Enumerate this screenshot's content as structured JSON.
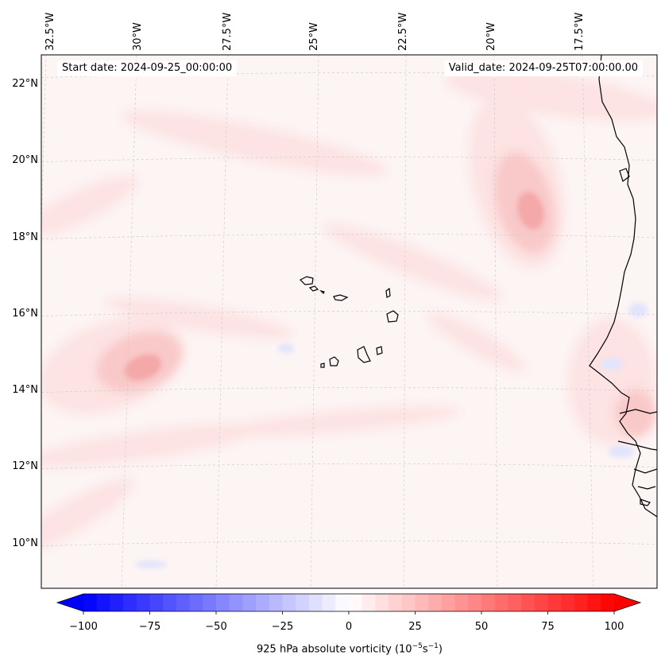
{
  "header": {
    "start_date": "Start date: 2024-09-25_00:00:00",
    "valid_date": "Valid_date: 2024-09-25T07:00:00.00"
  },
  "map": {
    "longitude_labels": [
      "32.5°W",
      "30°W",
      "27.5°W",
      "25°W",
      "22.5°W",
      "20°W",
      "17.5°W"
    ],
    "latitude_labels": [
      "22°N",
      "20°N",
      "18°N",
      "16°N",
      "14°N",
      "12°N",
      "10°N"
    ],
    "colors": {
      "background": "#fdf4f4",
      "light_red": "#fde3e3",
      "mid_red": "#f9c8c8",
      "strong_red": "#f4a8a8",
      "light_blue": "#e2e4fc",
      "coastline": "#000000",
      "grid": "#c8c8c8"
    }
  },
  "colorbar": {
    "ticks": [
      "−100",
      "−75",
      "−50",
      "−25",
      "0",
      "25",
      "50",
      "75",
      "100"
    ],
    "label_main": "925 hPa absolute vorticity (10",
    "label_exp1": "−5",
    "label_mid": "s",
    "label_exp2": "−1",
    "label_end": ")",
    "min": -100,
    "max": 100,
    "levels": 40,
    "color_negative": "#0000ff",
    "color_zero": "#ffffff",
    "color_positive": "#ff0000"
  }
}
